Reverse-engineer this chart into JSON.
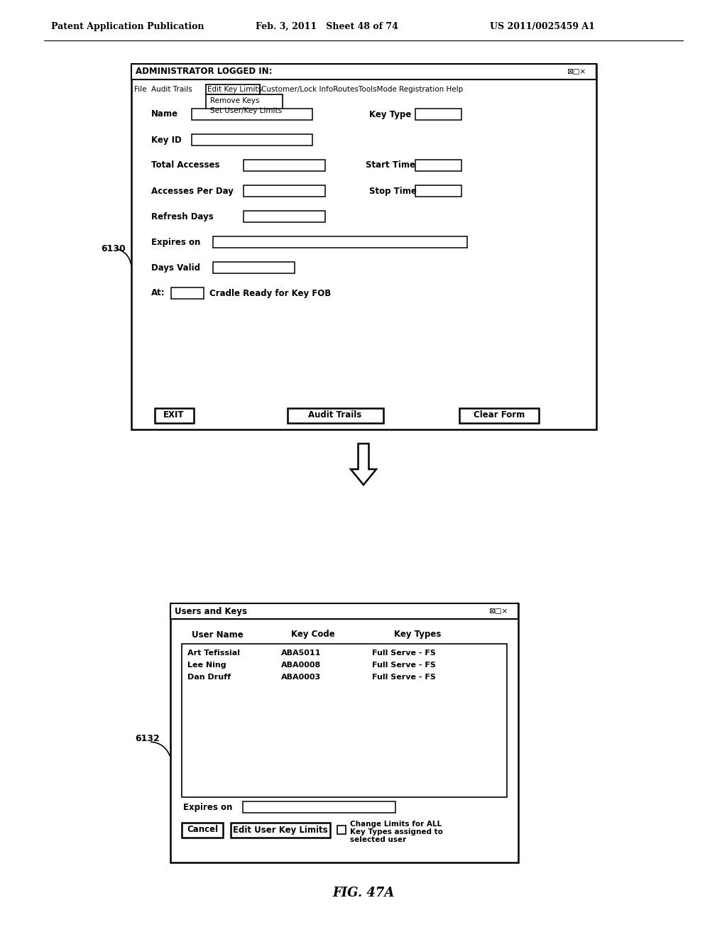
{
  "header_left": "Patent Application Publication",
  "header_mid": "Feb. 3, 2011   Sheet 48 of 74",
  "header_right": "US 2011/0025459 A1",
  "fig_label": "FIG. 47A",
  "bg_color": "#ffffff",
  "dialog1": {
    "title": "ADMINISTRATOR LOGGED IN:",
    "menu_left": "File  Audit Trails ",
    "menu_boxed": "Edit Key Limits",
    "menu_right": "Customer/Lock InfoRoutesToolsMode Registration Help",
    "dropdown": [
      "Remove Keys",
      "Set User/Key Limits"
    ],
    "buttons": [
      "EXIT",
      "Audit Trails",
      "Clear Form"
    ]
  },
  "dialog2": {
    "title": "Users and Keys",
    "col_headers": [
      "User Name",
      "Key Code",
      "Key Types"
    ],
    "rows": [
      [
        "Art Tefissial",
        "ABA5011",
        "Full Serve - FS"
      ],
      [
        "Lee Ning",
        "ABA0008",
        "Full Serve - FS"
      ],
      [
        "Dan Druff",
        "ABA0003",
        "Full Serve - FS"
      ]
    ],
    "buttons": [
      "Cancel",
      "Edit User Key Limits"
    ],
    "checkbox_text": [
      "Change Limits for ALL",
      "Key Types assigned to",
      "selected user"
    ]
  }
}
